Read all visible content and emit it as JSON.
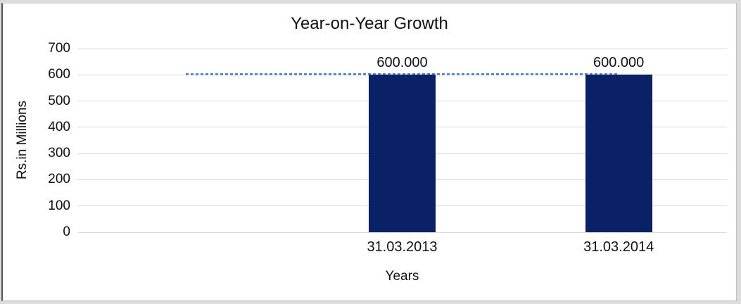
{
  "chart_data": {
    "type": "bar",
    "title": "Year-on-Year Growth",
    "xlabel": "Years",
    "ylabel": "Rs.in Millions",
    "categories": [
      "",
      "31.03.2013",
      "31.03.2014"
    ],
    "series": [
      {
        "name": "values-bars",
        "type": "bar",
        "values": [
          null,
          600,
          600
        ],
        "data_labels": [
          "",
          "600.000",
          "600.000"
        ],
        "color": "#0a2166"
      },
      {
        "name": "dotted-reference-line",
        "type": "line",
        "line_style": "dotted",
        "values": [
          600,
          600,
          600
        ],
        "color": "#5b8ac6"
      }
    ],
    "ylim": [
      0,
      700
    ],
    "ytick_interval": 100,
    "yticks": [
      700,
      600,
      500,
      400,
      300,
      200,
      100,
      0
    ],
    "grid": true,
    "legend": "none"
  },
  "theme": {
    "background": "#ffffff",
    "outer_band": "#dcdcdc",
    "gridline": "#d9d9d9",
    "axis_line": "#d9d9d9",
    "text": "#111111",
    "bar_fill": "#0a2166",
    "dotted_line": "#5b8ac6"
  }
}
